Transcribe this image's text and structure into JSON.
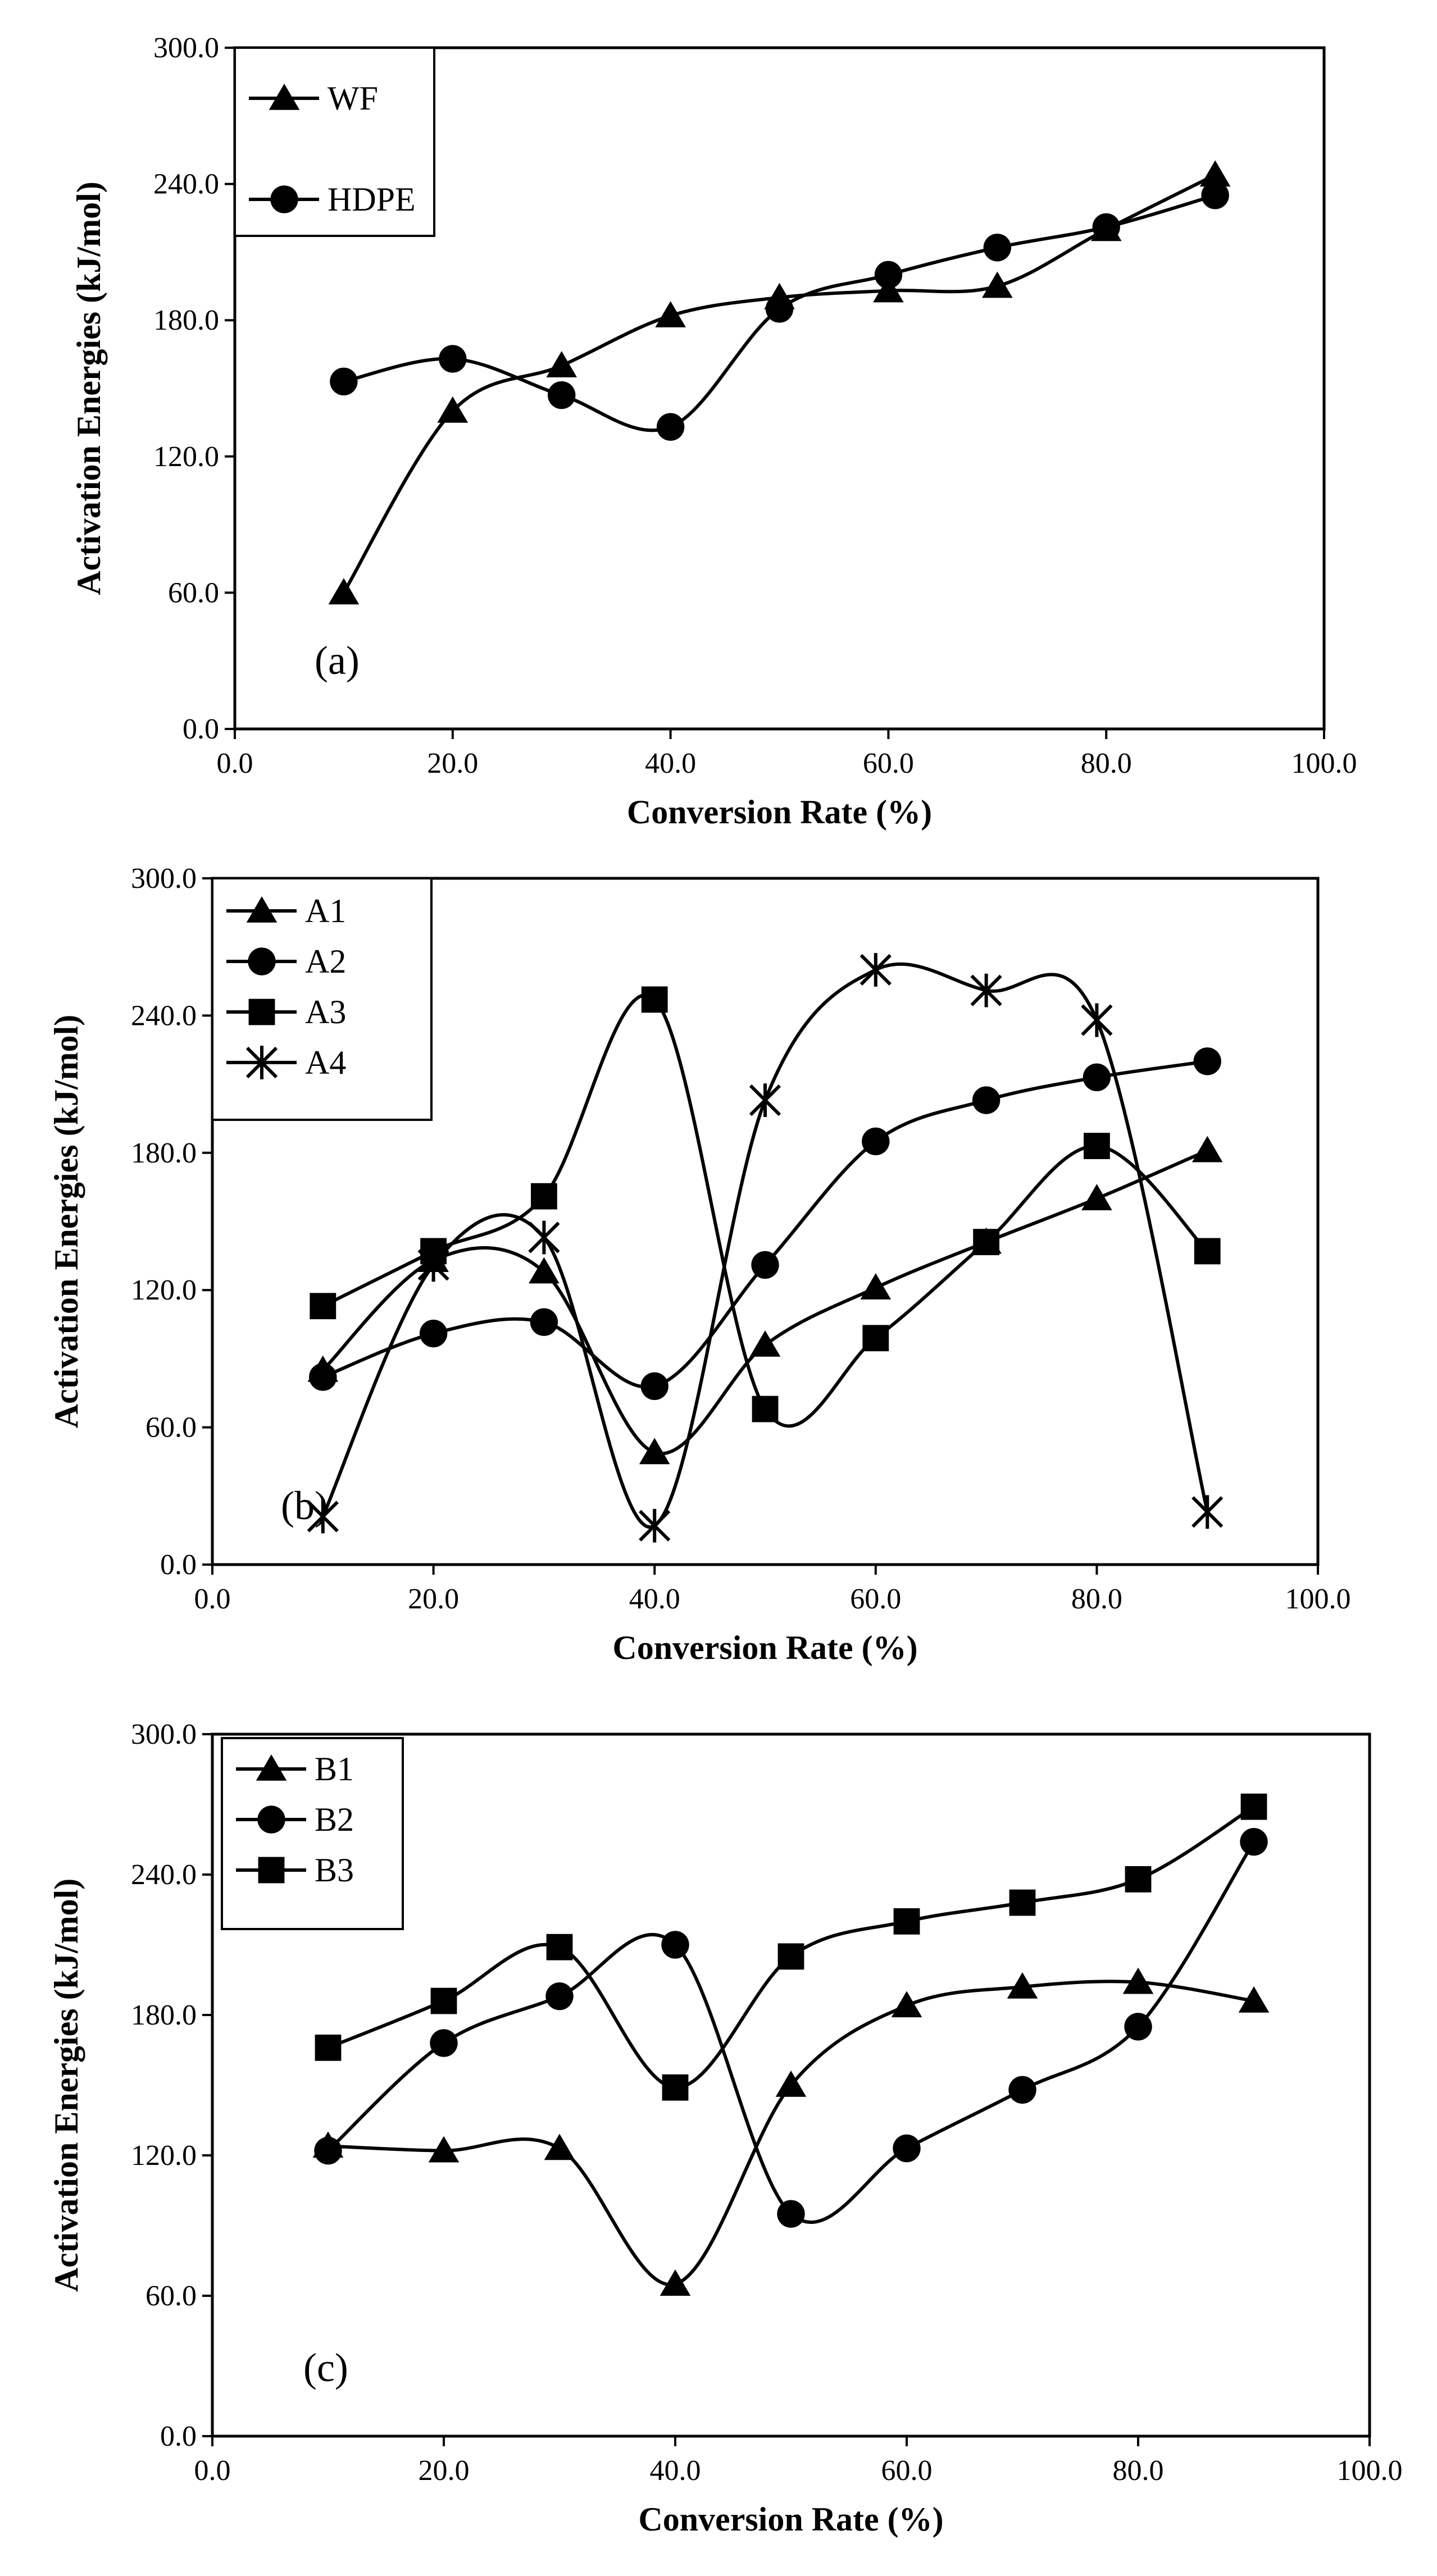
{
  "chart_data": [
    {
      "type": "line",
      "panel_label": "(a)",
      "xlabel": "Conversion Rate (%)",
      "ylabel": "Activation Energies (kJ/mol)",
      "xlim": [
        0,
        100
      ],
      "ylim": [
        0,
        300
      ],
      "x_ticks": [
        "0.0",
        "20.0",
        "40.0",
        "60.0",
        "80.0",
        "100.0"
      ],
      "y_ticks": [
        "0.0",
        "60.0",
        "120.0",
        "180.0",
        "240.0",
        "300.0"
      ],
      "legend_position": "top-left",
      "x": [
        10,
        20,
        30,
        40,
        50,
        60,
        70,
        80,
        90
      ],
      "series": [
        {
          "name": "WF",
          "marker": "triangle",
          "values": [
            60,
            140,
            160,
            182,
            190,
            193,
            195,
            220,
            244
          ]
        },
        {
          "name": "HDPE",
          "marker": "circle",
          "values": [
            153,
            163,
            147,
            133,
            185,
            200,
            212,
            221,
            235
          ]
        }
      ]
    },
    {
      "type": "line",
      "panel_label": "(b)",
      "xlabel": "Conversion Rate (%)",
      "ylabel": "Activation Energies (kJ/mol)",
      "xlim": [
        0,
        100
      ],
      "ylim": [
        0,
        300
      ],
      "x_ticks": [
        "0.0",
        "20.0",
        "40.0",
        "60.0",
        "80.0",
        "100.0"
      ],
      "y_ticks": [
        "0.0",
        "60.0",
        "120.0",
        "180.0",
        "240.0",
        "300.0"
      ],
      "legend_position": "top-left",
      "x": [
        10,
        20,
        30,
        40,
        50,
        60,
        70,
        80,
        90
      ],
      "series": [
        {
          "name": "A1",
          "marker": "triangle",
          "values": [
            85,
            133,
            128,
            49,
            96,
            121,
            141,
            160,
            181
          ]
        },
        {
          "name": "A2",
          "marker": "circle",
          "values": [
            82,
            101,
            106,
            78,
            131,
            185,
            203,
            213,
            220
          ]
        },
        {
          "name": "A3",
          "marker": "square",
          "values": [
            113,
            137,
            161,
            247,
            68,
            99,
            141,
            183,
            137
          ]
        },
        {
          "name": "A4",
          "marker": "asterisk",
          "values": [
            21,
            131,
            143,
            17,
            203,
            260,
            251,
            238,
            23
          ]
        }
      ]
    },
    {
      "type": "line",
      "panel_label": "(c)",
      "xlabel": "Conversion Rate (%)",
      "ylabel": "Activation Energies (kJ/mol)",
      "xlim": [
        0,
        100
      ],
      "ylim": [
        0,
        300
      ],
      "x_ticks": [
        "0.0",
        "20.0",
        "40.0",
        "60.0",
        "80.0",
        "100.0"
      ],
      "y_ticks": [
        "0.0",
        "60.0",
        "120.0",
        "180.0",
        "240.0",
        "300.0"
      ],
      "legend_position": "top-left",
      "x": [
        10,
        20,
        30,
        40,
        50,
        60,
        70,
        80,
        90
      ],
      "series": [
        {
          "name": "B1",
          "marker": "triangle",
          "values": [
            124,
            122,
            123,
            65,
            150,
            184,
            192,
            194,
            186
          ]
        },
        {
          "name": "B2",
          "marker": "circle",
          "values": [
            122,
            168,
            188,
            210,
            95,
            123,
            148,
            175,
            254
          ]
        },
        {
          "name": "B3",
          "marker": "square",
          "values": [
            166,
            186,
            209,
            149,
            205,
            220,
            228,
            238,
            269
          ]
        }
      ]
    }
  ]
}
